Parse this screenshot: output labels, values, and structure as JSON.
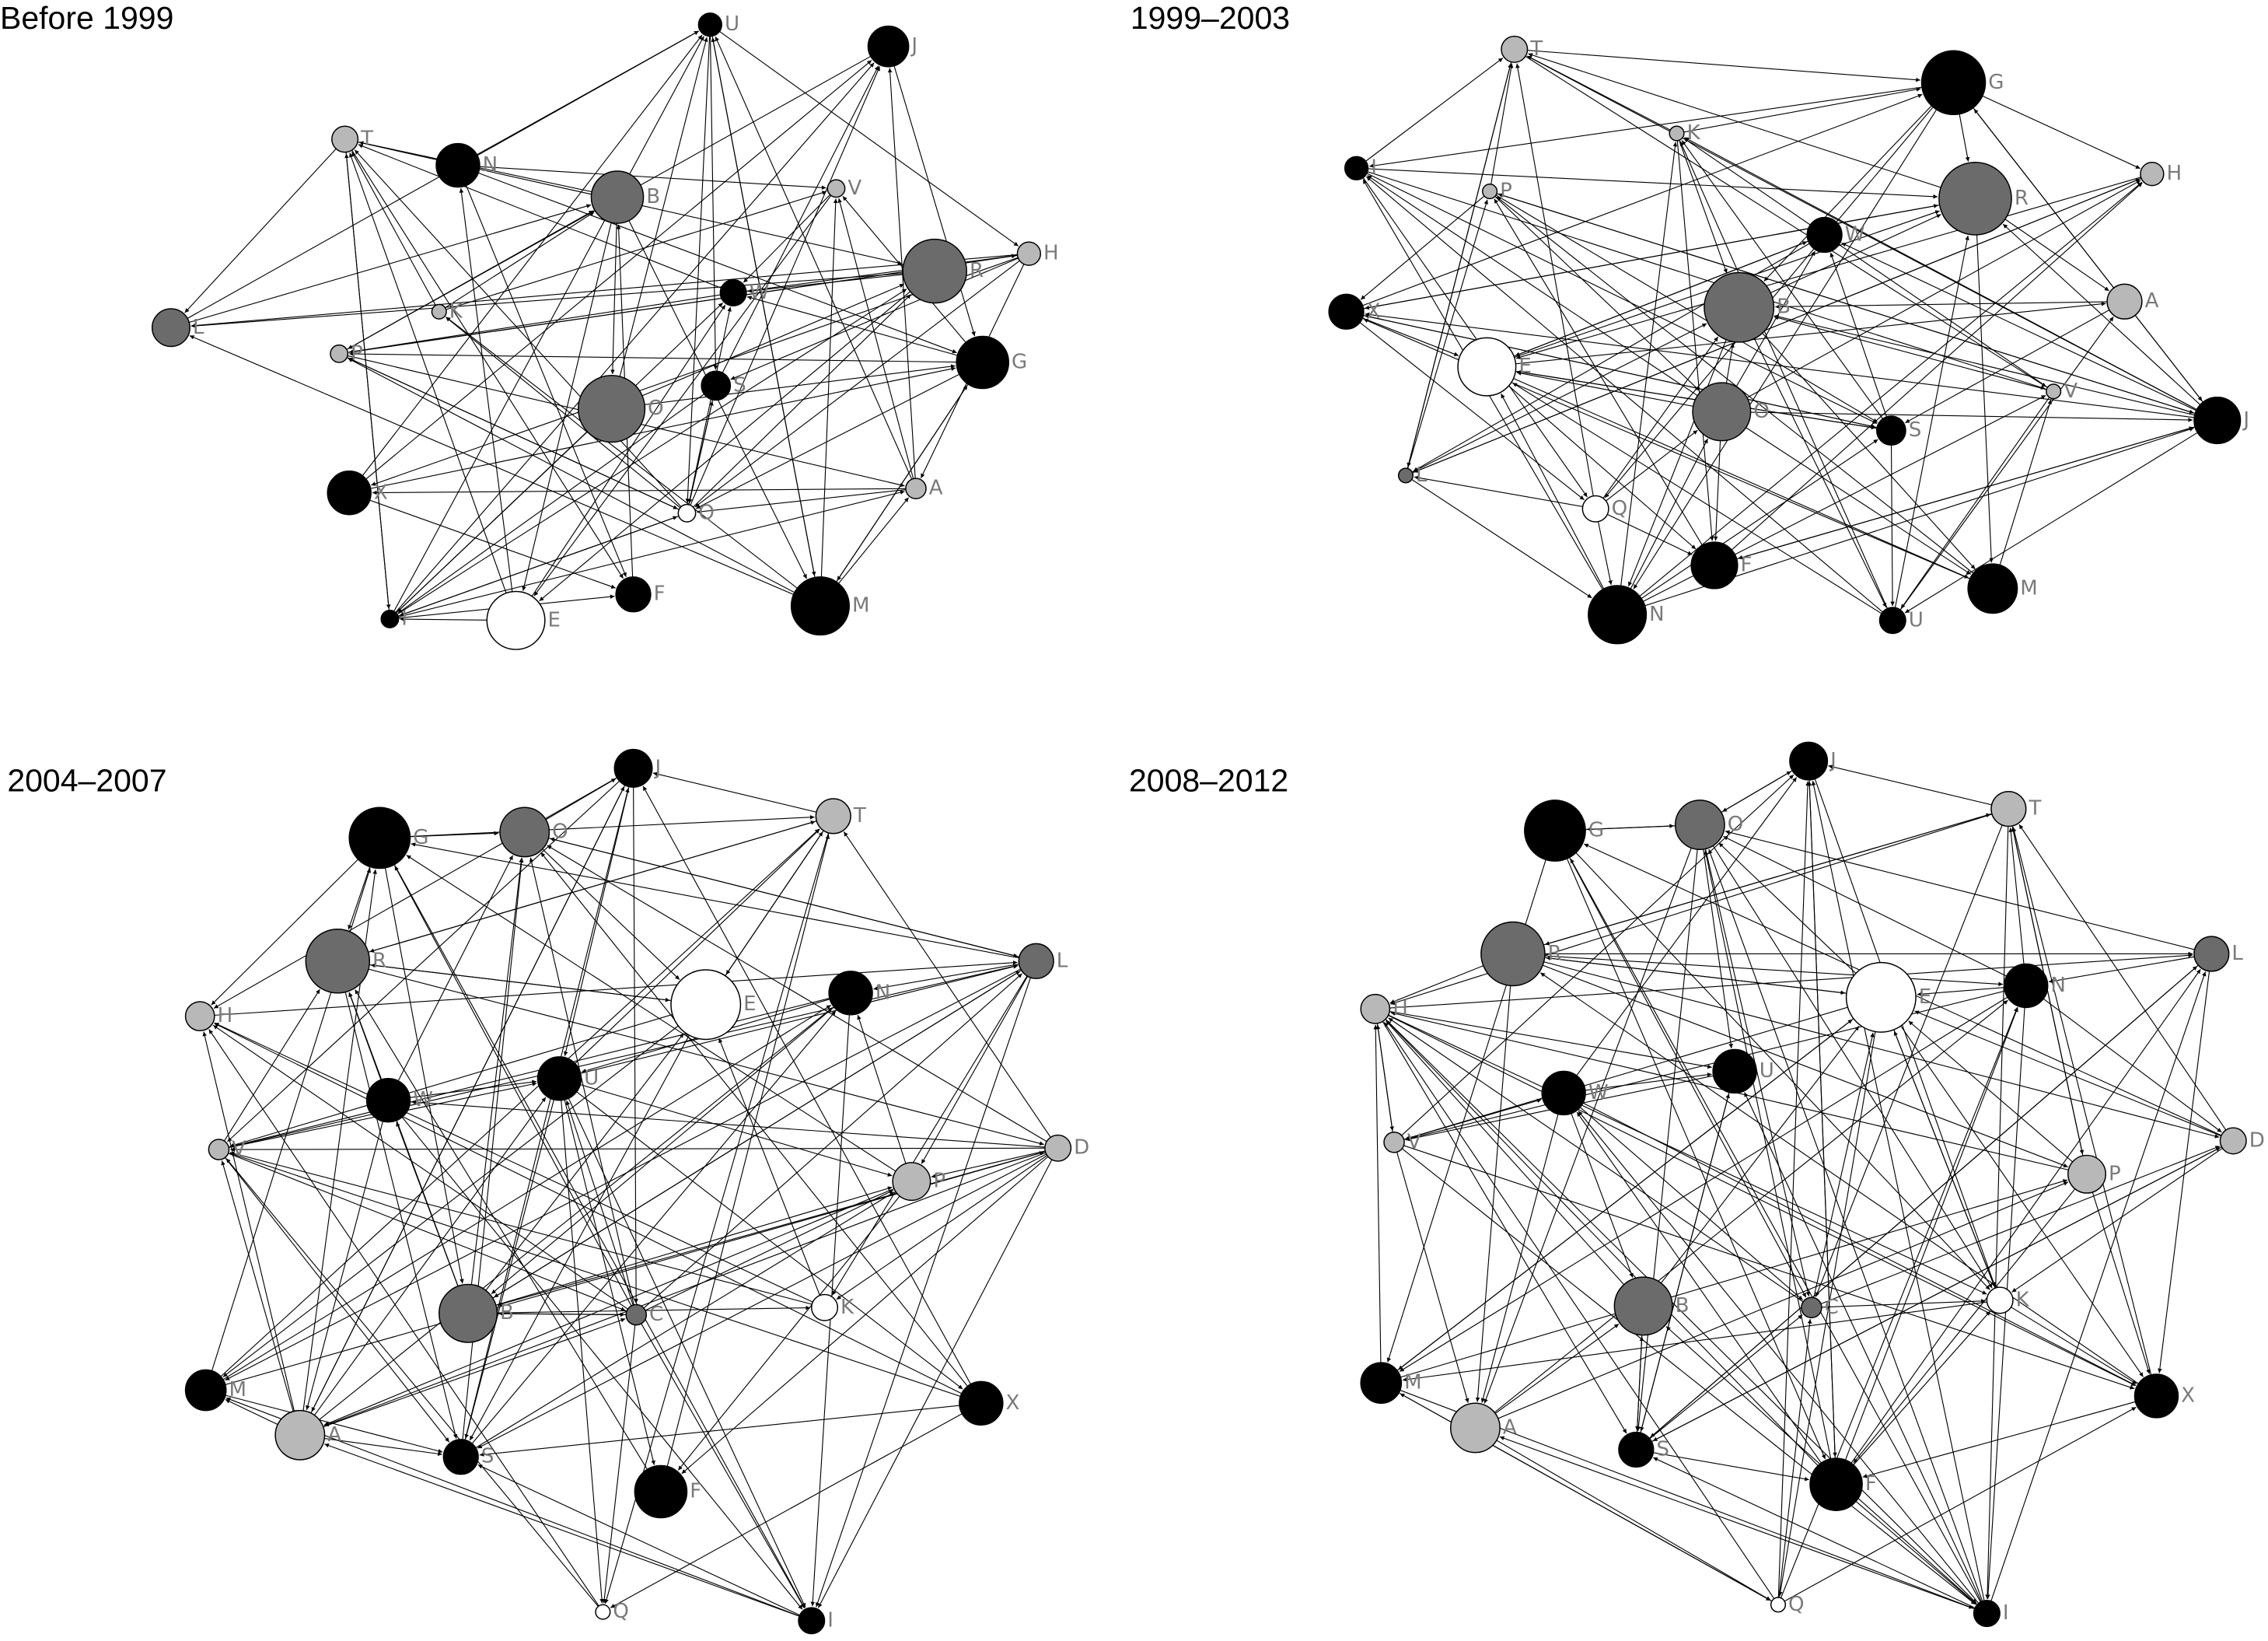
{
  "panels": [
    {
      "title": "Before 1999",
      "nodes": [
        "U",
        "J",
        "T",
        "N",
        "B",
        "V",
        "R",
        "H",
        "L",
        "K",
        "W",
        "P",
        "G",
        "O",
        "S",
        "X",
        "A",
        "Q",
        "I",
        "E",
        "F",
        "M"
      ]
    },
    {
      "title": "1999–2003",
      "nodes": [
        "T",
        "G",
        "K",
        "I",
        "P",
        "H",
        "R",
        "W",
        "X",
        "B",
        "A",
        "E",
        "V",
        "O",
        "S",
        "J",
        "L",
        "Q",
        "F",
        "N",
        "U",
        "M"
      ]
    },
    {
      "title": "2004–2007",
      "nodes": [
        "J",
        "G",
        "O",
        "T",
        "R",
        "L",
        "H",
        "E",
        "N",
        "U",
        "W",
        "V",
        "P",
        "D",
        "B",
        "C",
        "K",
        "M",
        "A",
        "S",
        "F",
        "X",
        "Q",
        "I"
      ]
    },
    {
      "title": "2008–2012",
      "nodes": [
        "J",
        "G",
        "O",
        "T",
        "R",
        "L",
        "H",
        "E",
        "N",
        "U",
        "W",
        "V",
        "P",
        "D",
        "B",
        "C",
        "K",
        "M",
        "A",
        "S",
        "F",
        "X",
        "Q",
        "I"
      ]
    }
  ]
}
